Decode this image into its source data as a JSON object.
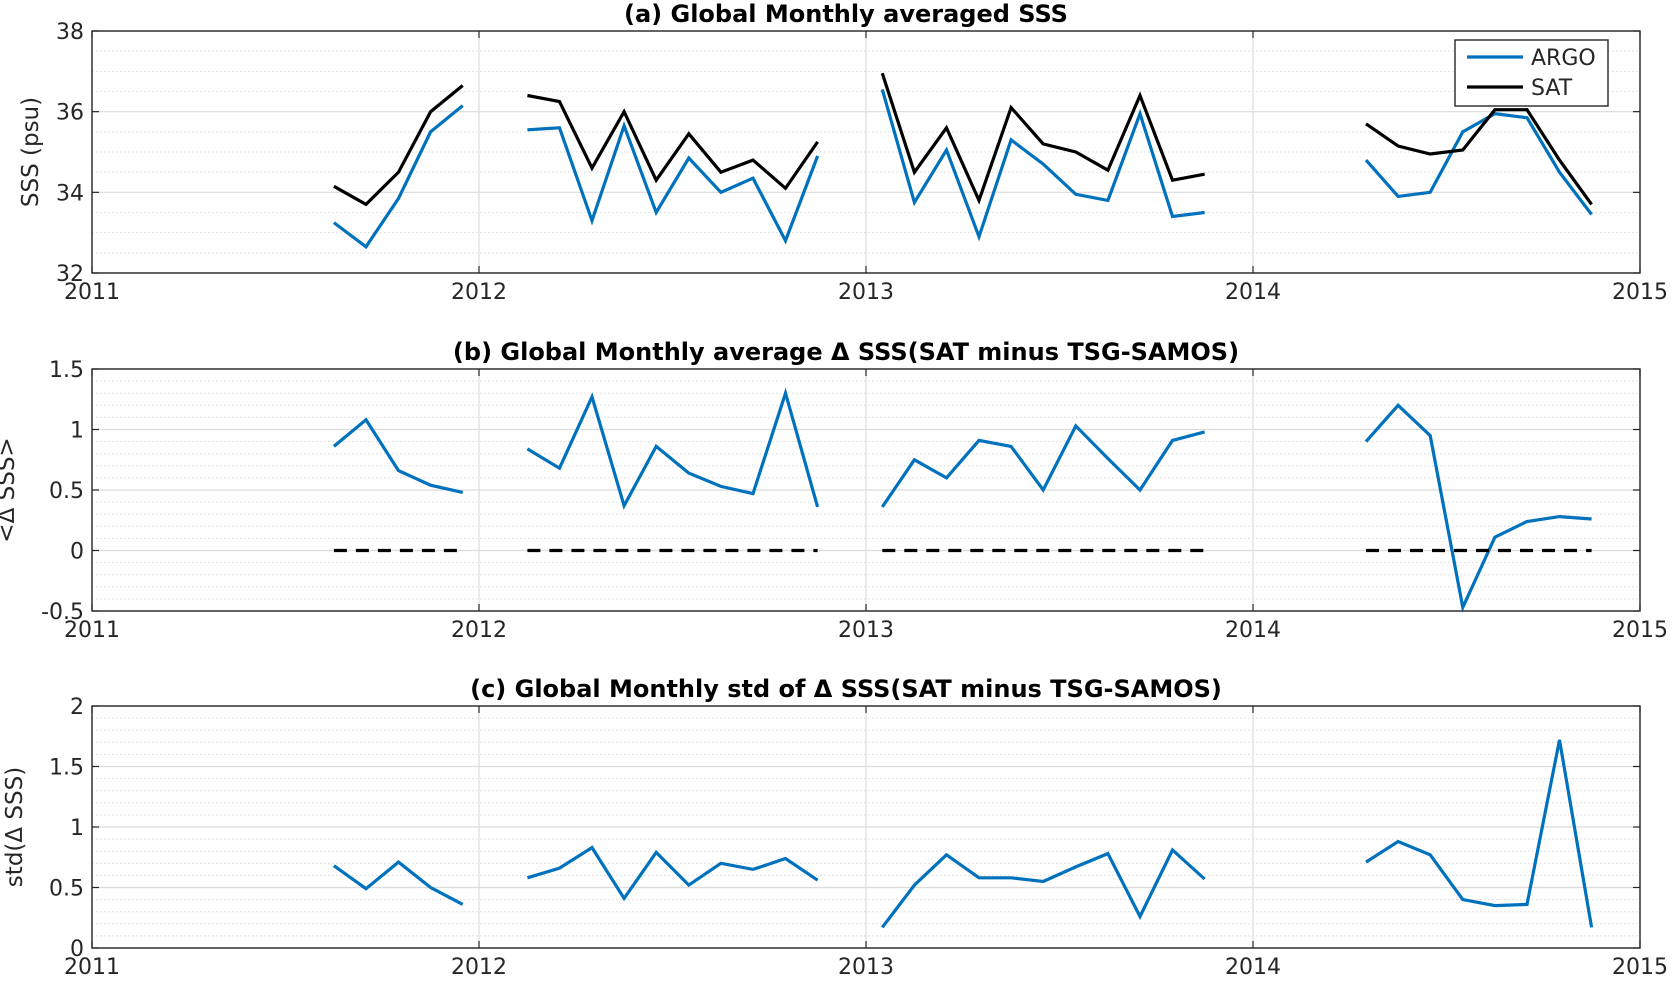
{
  "figure": {
    "panel_count": 3
  },
  "chart_data": [
    {
      "type": "line",
      "title": "(a) Global Monthly averaged SSS",
      "xlabel": "",
      "ylabel": "SSS (psu)",
      "xlim": [
        2011.0,
        2015.0
      ],
      "ylim": [
        32,
        38
      ],
      "xticks": [
        2011,
        2012,
        2013,
        2014,
        2015
      ],
      "xtick_labels": [
        "2011",
        "2012",
        "2013",
        "2014",
        "2015"
      ],
      "yticks": [
        32,
        34,
        36,
        38
      ],
      "ytick_labels": [
        "32",
        "34",
        "36",
        "38"
      ],
      "minor_grid_step": 0.5,
      "grid": true,
      "legend": {
        "placement": "top-right",
        "entries": [
          "ARGO",
          "SAT"
        ]
      },
      "series": [
        {
          "name": "ARGO",
          "color": "#0072bd",
          "segments": [
            [
              [
                2011.625,
                33.25
              ],
              [
                2011.708,
                32.65
              ],
              [
                2011.792,
                33.85
              ],
              [
                2011.875,
                35.5
              ],
              [
                2011.958,
                36.15
              ]
            ],
            [
              [
                2012.125,
                35.55
              ],
              [
                2012.208,
                35.6
              ],
              [
                2012.292,
                33.3
              ],
              [
                2012.375,
                35.65
              ],
              [
                2012.458,
                33.5
              ],
              [
                2012.542,
                34.85
              ],
              [
                2012.625,
                34.0
              ],
              [
                2012.708,
                34.35
              ],
              [
                2012.792,
                32.8
              ],
              [
                2012.875,
                34.9
              ]
            ],
            [
              [
                2013.042,
                36.55
              ],
              [
                2013.125,
                33.75
              ],
              [
                2013.208,
                35.05
              ],
              [
                2013.292,
                32.9
              ],
              [
                2013.375,
                35.3
              ],
              [
                2013.458,
                34.7
              ],
              [
                2013.542,
                33.95
              ],
              [
                2013.625,
                33.8
              ],
              [
                2013.708,
                35.95
              ],
              [
                2013.792,
                33.4
              ],
              [
                2013.875,
                33.5
              ]
            ],
            [
              [
                2014.292,
                34.8
              ],
              [
                2014.375,
                33.9
              ],
              [
                2014.458,
                34.0
              ],
              [
                2014.542,
                35.5
              ],
              [
                2014.625,
                35.95
              ],
              [
                2014.708,
                35.85
              ],
              [
                2014.792,
                34.5
              ],
              [
                2014.875,
                33.45
              ]
            ]
          ]
        },
        {
          "name": "SAT",
          "color": "#000000",
          "segments": [
            [
              [
                2011.625,
                34.15
              ],
              [
                2011.708,
                33.7
              ],
              [
                2011.792,
                34.5
              ],
              [
                2011.875,
                36.0
              ],
              [
                2011.958,
                36.65
              ]
            ],
            [
              [
                2012.125,
                36.4
              ],
              [
                2012.208,
                36.25
              ],
              [
                2012.292,
                34.6
              ],
              [
                2012.375,
                36.0
              ],
              [
                2012.458,
                34.3
              ],
              [
                2012.542,
                35.45
              ],
              [
                2012.625,
                34.5
              ],
              [
                2012.708,
                34.8
              ],
              [
                2012.792,
                34.1
              ],
              [
                2012.875,
                35.25
              ]
            ],
            [
              [
                2013.042,
                36.95
              ],
              [
                2013.125,
                34.5
              ],
              [
                2013.208,
                35.6
              ],
              [
                2013.292,
                33.8
              ],
              [
                2013.375,
                36.1
              ],
              [
                2013.458,
                35.2
              ],
              [
                2013.542,
                35.0
              ],
              [
                2013.625,
                34.55
              ],
              [
                2013.708,
                36.4
              ],
              [
                2013.792,
                34.3
              ],
              [
                2013.875,
                34.45
              ]
            ],
            [
              [
                2014.292,
                35.7
              ],
              [
                2014.375,
                35.15
              ],
              [
                2014.458,
                34.95
              ],
              [
                2014.542,
                35.05
              ],
              [
                2014.625,
                36.05
              ],
              [
                2014.708,
                36.05
              ],
              [
                2014.792,
                34.8
              ],
              [
                2014.875,
                33.7
              ]
            ]
          ]
        }
      ]
    },
    {
      "type": "line",
      "title": "(b) Global Monthly average Δ SSS(SAT minus TSG-SAMOS)",
      "xlabel": "",
      "ylabel": "<Δ SSS>",
      "xlim": [
        2011.0,
        2015.0
      ],
      "ylim": [
        -0.5,
        1.5
      ],
      "xticks": [
        2011,
        2012,
        2013,
        2014,
        2015
      ],
      "xtick_labels": [
        "2011",
        "2012",
        "2013",
        "2014",
        "2015"
      ],
      "yticks": [
        -0.5,
        0,
        0.5,
        1,
        1.5
      ],
      "ytick_labels": [
        "-0.5",
        "0",
        "0.5",
        "1",
        "1.5"
      ],
      "minor_grid_step": 0.1,
      "grid": true,
      "series": [
        {
          "color": "#0072bd",
          "segments": [
            [
              [
                2011.625,
                0.86
              ],
              [
                2011.708,
                1.08
              ],
              [
                2011.792,
                0.66
              ],
              [
                2011.875,
                0.54
              ],
              [
                2011.958,
                0.48
              ]
            ],
            [
              [
                2012.125,
                0.84
              ],
              [
                2012.208,
                0.68
              ],
              [
                2012.292,
                1.27
              ],
              [
                2012.375,
                0.37
              ],
              [
                2012.458,
                0.86
              ],
              [
                2012.542,
                0.64
              ],
              [
                2012.625,
                0.53
              ],
              [
                2012.708,
                0.47
              ],
              [
                2012.792,
                1.3
              ],
              [
                2012.875,
                0.36
              ]
            ],
            [
              [
                2013.042,
                0.36
              ],
              [
                2013.125,
                0.75
              ],
              [
                2013.208,
                0.6
              ],
              [
                2013.292,
                0.91
              ],
              [
                2013.375,
                0.86
              ],
              [
                2013.458,
                0.5
              ],
              [
                2013.542,
                1.03
              ],
              [
                2013.625,
                0.76
              ],
              [
                2013.708,
                0.5
              ],
              [
                2013.792,
                0.91
              ],
              [
                2013.875,
                0.98
              ]
            ],
            [
              [
                2014.292,
                0.9
              ],
              [
                2014.375,
                1.2
              ],
              [
                2014.458,
                0.95
              ],
              [
                2014.542,
                -0.47
              ],
              [
                2014.625,
                0.11
              ],
              [
                2014.708,
                0.24
              ],
              [
                2014.792,
                0.28
              ],
              [
                2014.875,
                0.26
              ]
            ]
          ]
        },
        {
          "color": "#000000",
          "dashed": true,
          "segments": [
            [
              [
                2011.625,
                0
              ],
              [
                2011.958,
                0
              ]
            ],
            [
              [
                2012.125,
                0
              ],
              [
                2012.875,
                0
              ]
            ],
            [
              [
                2013.042,
                0
              ],
              [
                2013.875,
                0
              ]
            ],
            [
              [
                2014.292,
                0
              ],
              [
                2014.875,
                0
              ]
            ]
          ]
        }
      ]
    },
    {
      "type": "line",
      "title": "(c) Global Monthly std of Δ SSS(SAT minus TSG-SAMOS)",
      "xlabel": "",
      "ylabel": "std(Δ SSS)",
      "xlim": [
        2011.0,
        2015.0
      ],
      "ylim": [
        0,
        2
      ],
      "xticks": [
        2011,
        2012,
        2013,
        2014,
        2015
      ],
      "xtick_labels": [
        "2011",
        "2012",
        "2013",
        "2014",
        "2015"
      ],
      "yticks": [
        0,
        0.5,
        1,
        1.5,
        2
      ],
      "ytick_labels": [
        "0",
        "0.5",
        "1",
        "1.5",
        "2"
      ],
      "minor_grid_step": 0.1,
      "grid": true,
      "series": [
        {
          "color": "#0072bd",
          "segments": [
            [
              [
                2011.625,
                0.68
              ],
              [
                2011.708,
                0.49
              ],
              [
                2011.792,
                0.71
              ],
              [
                2011.875,
                0.5
              ],
              [
                2011.958,
                0.36
              ]
            ],
            [
              [
                2012.125,
                0.58
              ],
              [
                2012.208,
                0.66
              ],
              [
                2012.292,
                0.83
              ],
              [
                2012.375,
                0.41
              ],
              [
                2012.458,
                0.79
              ],
              [
                2012.542,
                0.52
              ],
              [
                2012.625,
                0.7
              ],
              [
                2012.708,
                0.65
              ],
              [
                2012.792,
                0.74
              ],
              [
                2012.875,
                0.56
              ]
            ],
            [
              [
                2013.042,
                0.17
              ],
              [
                2013.125,
                0.52
              ],
              [
                2013.208,
                0.77
              ],
              [
                2013.292,
                0.58
              ],
              [
                2013.375,
                0.58
              ],
              [
                2013.458,
                0.55
              ],
              [
                2013.542,
                0.67
              ],
              [
                2013.625,
                0.78
              ],
              [
                2013.708,
                0.26
              ],
              [
                2013.792,
                0.81
              ],
              [
                2013.875,
                0.57
              ]
            ],
            [
              [
                2014.292,
                0.71
              ],
              [
                2014.375,
                0.88
              ],
              [
                2014.458,
                0.77
              ],
              [
                2014.542,
                0.4
              ],
              [
                2014.625,
                0.35
              ],
              [
                2014.708,
                0.36
              ],
              [
                2014.792,
                1.72
              ],
              [
                2014.875,
                0.17
              ]
            ]
          ]
        }
      ]
    }
  ]
}
